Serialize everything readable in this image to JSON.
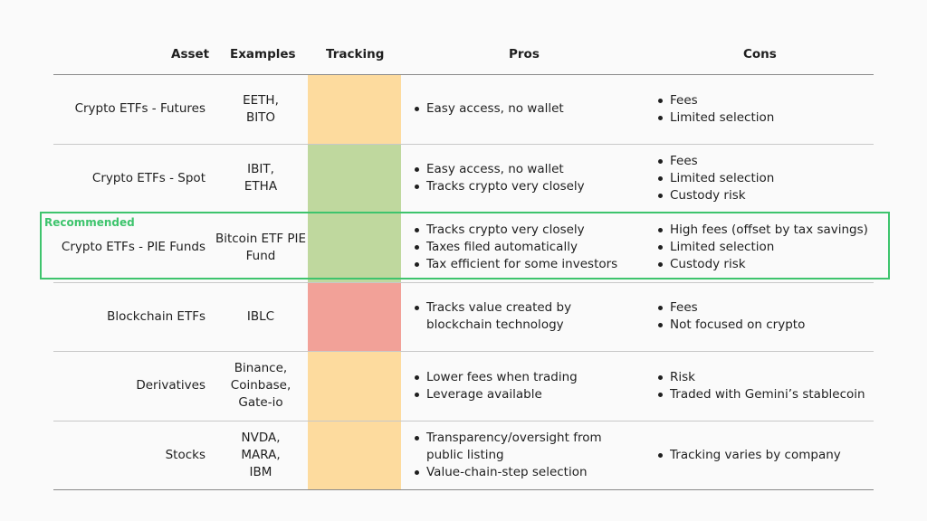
{
  "headers": {
    "asset": "Asset",
    "examples": "Examples",
    "tracking": "Tracking",
    "pros": "Pros",
    "cons": "Cons"
  },
  "recommended_label": "Recommended",
  "colors": {
    "orange": "#fddb9e",
    "green": "#bfd89e",
    "red": "#f2a198",
    "recommended": "#3ec46d"
  },
  "rows": [
    {
      "asset": "Crypto ETFs - Futures",
      "examples": [
        "EETH,",
        "BITO"
      ],
      "tracking": "orange",
      "pros": [
        "Easy access, no wallet"
      ],
      "cons": [
        "Fees",
        "Limited selection"
      ]
    },
    {
      "asset": "Crypto ETFs - Spot",
      "examples": [
        "IBIT,",
        "ETHA"
      ],
      "tracking": "green",
      "pros": [
        "Easy access, no wallet",
        "Tracks crypto very closely"
      ],
      "cons": [
        "Fees",
        "Limited selection",
        "Custody risk"
      ]
    },
    {
      "asset": "Crypto ETFs - PIE Funds",
      "examples": [
        "Bitcoin ETF PIE",
        "Fund"
      ],
      "tracking": "green",
      "recommended": true,
      "pros": [
        "Tracks crypto very closely",
        "Taxes filed automatically",
        "Tax efficient for some investors"
      ],
      "cons": [
        "High fees (offset by tax savings)",
        "Limited selection",
        "Custody risk"
      ]
    },
    {
      "asset": "Blockchain ETFs",
      "examples": [
        "IBLC"
      ],
      "tracking": "red",
      "pros": [
        "Tracks value created by blockchain technology"
      ],
      "cons": [
        "Fees",
        "Not focused on crypto"
      ]
    },
    {
      "asset": "Derivatives",
      "examples": [
        "Binance,",
        "Coinbase,",
        "Gate-io"
      ],
      "tracking": "orange",
      "pros": [
        "Lower fees when trading",
        "Leverage available"
      ],
      "cons": [
        "Risk",
        "Traded with Gemini’s stablecoin"
      ]
    },
    {
      "asset": "Stocks",
      "examples": [
        "NVDA,",
        "MARA,",
        "IBM"
      ],
      "tracking": "orange",
      "pros": [
        "Transparency/oversight from public listing",
        "Value-chain-step selection"
      ],
      "cons": [
        "Tracking varies by company"
      ]
    }
  ]
}
